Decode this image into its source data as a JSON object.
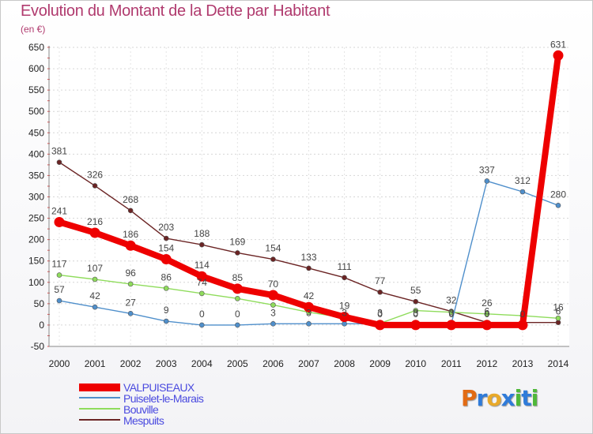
{
  "title": "Evolution du Montant de la Dette par Habitant",
  "subtitle": "(en €)",
  "logo": {
    "text": "Proxiti",
    "colors": [
      "#e26b14",
      "#2f7bd9",
      "#e8a92a",
      "#2f7bd9",
      "#4fb83a",
      "#2f7bd9",
      "#4fb83a"
    ]
  },
  "chart_data": {
    "type": "line",
    "title": "Evolution du Montant de la Dette par Habitant",
    "ylabel": "(en €)",
    "ylim": [
      -50,
      650
    ],
    "yticks": [
      -50,
      0,
      50,
      100,
      150,
      200,
      250,
      300,
      350,
      400,
      450,
      500,
      550,
      600,
      650
    ],
    "x": [
      "2000",
      "2001",
      "2002",
      "2003",
      "2004",
      "2005",
      "2006",
      "2007",
      "2008",
      "2009",
      "2010",
      "2011",
      "2012",
      "2013",
      "2014"
    ],
    "legend_position": "bottom-left",
    "series": [
      {
        "name": "VALPUISEAUX",
        "color": "#ee0000",
        "thick": true,
        "values": [
          241,
          216,
          186,
          154,
          114,
          85,
          70,
          42,
          19,
          0,
          0,
          0,
          0,
          0,
          631
        ],
        "labels": [
          "241",
          "216",
          "186",
          "154",
          "114",
          "85",
          "70",
          "42",
          "19",
          "0",
          "0",
          "0",
          "0",
          "0",
          "631"
        ]
      },
      {
        "name": "Puiselet-le-Marais",
        "color": "#4f8fcb",
        "thick": false,
        "values": [
          57,
          42,
          27,
          9,
          0,
          0,
          3,
          3,
          3,
          3,
          3,
          3,
          337,
          312,
          280
        ],
        "labels": [
          "57",
          "42",
          "27",
          "9",
          "0",
          "0",
          "3",
          "3",
          "3",
          "3",
          "3",
          "3",
          "337",
          "312",
          "280"
        ]
      },
      {
        "name": "Bouville",
        "color": "#8fdc5c",
        "thick": false,
        "values": [
          117,
          107,
          96,
          86,
          74,
          62,
          47,
          30,
          17,
          4,
          34,
          30,
          26,
          22,
          16
        ],
        "labels": [
          "117",
          "107",
          "96",
          "86",
          "74",
          "",
          "",
          "",
          "",
          "",
          "",
          "",
          "26",
          "",
          "16"
        ]
      },
      {
        "name": "Mespuits",
        "color": "#6b2424",
        "thick": false,
        "values": [
          381,
          326,
          268,
          203,
          188,
          169,
          154,
          133,
          111,
          77,
          55,
          32,
          6,
          6,
          6
        ],
        "labels": [
          "381",
          "326",
          "268",
          "203",
          "188",
          "169",
          "154",
          "133",
          "111",
          "77",
          "55",
          "32",
          "6",
          "",
          "6"
        ]
      }
    ]
  }
}
